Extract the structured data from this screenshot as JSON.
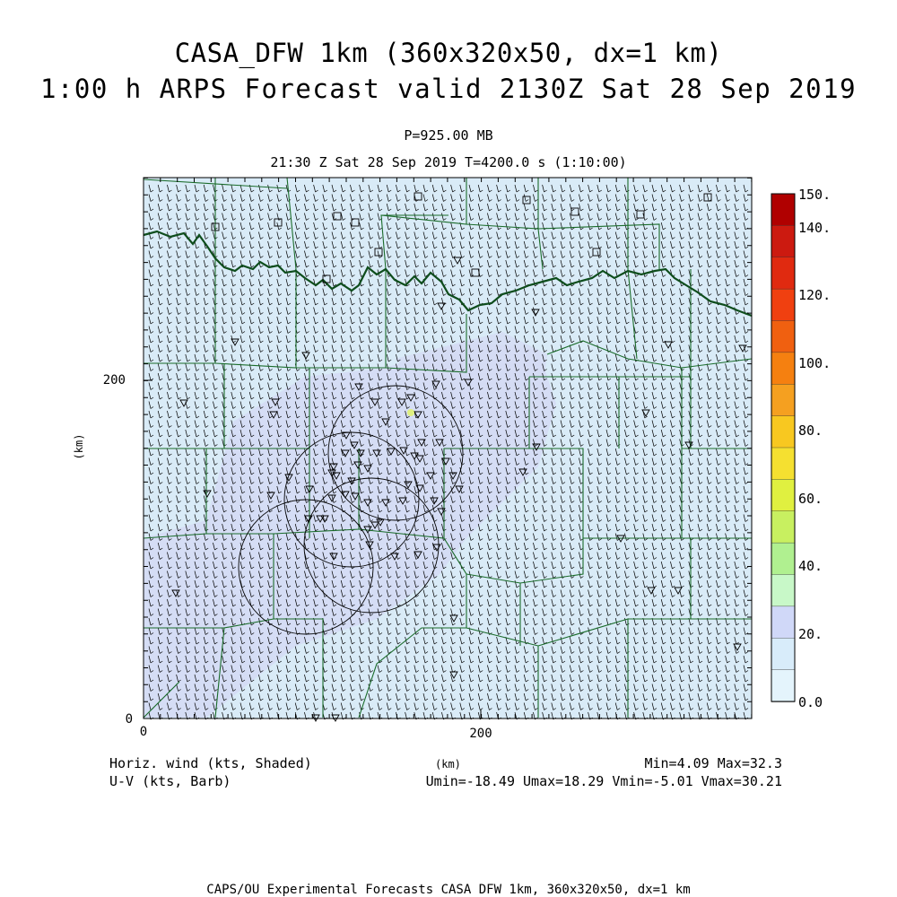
{
  "title": {
    "line1": "CASA_DFW 1km (360x320x50, dx=1 km)",
    "line2": "1:00 h ARPS Forecast valid 2130Z Sat 28 Sep 2019"
  },
  "subtitle": {
    "level": "P=925.00 MB",
    "time": "21:30 Z Sat 28 Sep 2019   T=4200.0 s (1:10:00)"
  },
  "axes": {
    "x_ticks": [
      "0",
      "200"
    ],
    "y_ticks": [
      "0",
      "200"
    ],
    "x_label": "(km)",
    "y_label": "(km)",
    "x_range_km": [
      0,
      360
    ],
    "y_range_km": [
      0,
      320
    ]
  },
  "colorbar": {
    "labels": [
      "150.",
      "140.",
      "120.",
      "100.",
      "80.",
      "60.",
      "40.",
      "20.",
      "0.0"
    ],
    "colors_top_to_bottom": [
      "#b00000",
      "#cc1a10",
      "#e02a10",
      "#f04010",
      "#f06010",
      "#f58010",
      "#f5a020",
      "#f8c820",
      "#f5e030",
      "#e0f040",
      "#c8f060",
      "#b0f090",
      "#c8f8c8",
      "#d0d8f8",
      "#d8ecfa",
      "#e4f4fc"
    ]
  },
  "field": {
    "base_color": "#d9ebf7",
    "zone_color": "#d4dcf4",
    "boundary_color": "#1a6b2a",
    "barb_color": "#000000",
    "station_symbols": [
      "triangle-down",
      "square"
    ]
  },
  "footer": {
    "shaded_label": "Horiz. wind (kts, Shaded)",
    "barb_label": "U-V (kts, Barb)",
    "unit": "(km)",
    "minmax": "Min=4.09 Max=32.3",
    "uv_stats": "Umin=-18.49 Umax=18.29 Vmin=-5.01 Vmax=30.21"
  },
  "credit": "CAPS/OU Experimental Forecasts  CASA DFW 1km, 360x320x50, dx=1 km"
}
